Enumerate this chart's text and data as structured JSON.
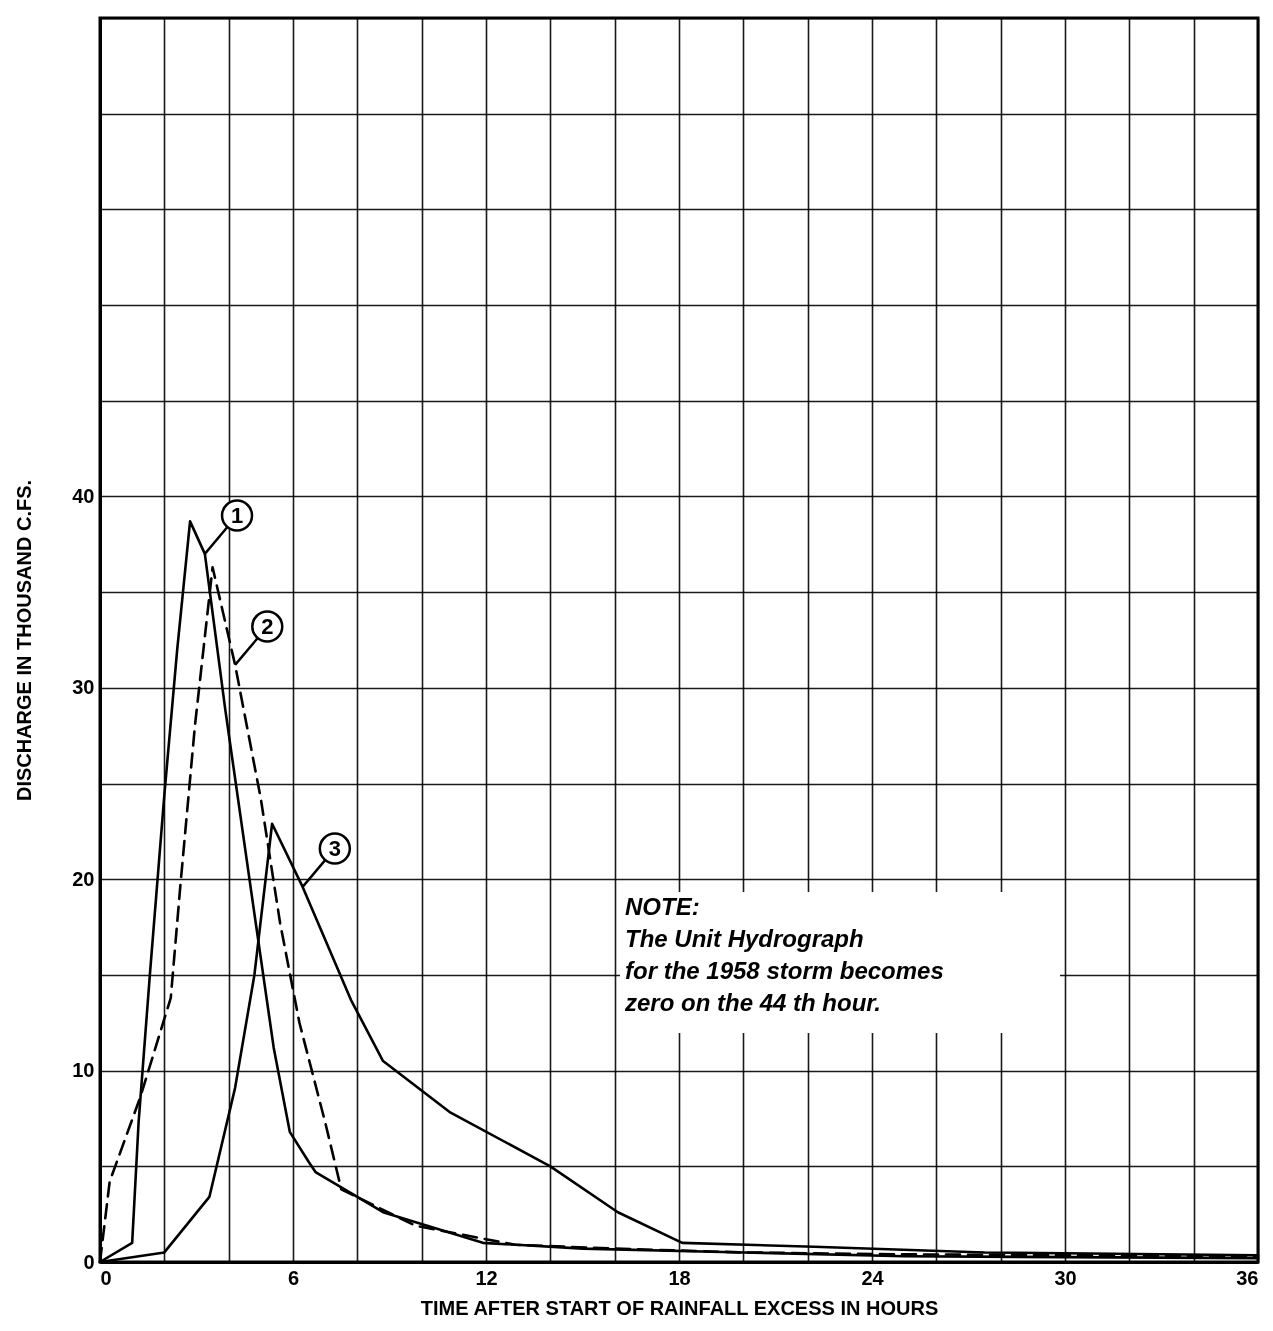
{
  "chart_data": {
    "type": "line",
    "xlabel": "TIME AFTER START OF RAINFALL EXCESS IN HOURS",
    "ylabel": "DISCHARGE IN THOUSAND C.FS.",
    "xlim": [
      0,
      36
    ],
    "ylim": [
      0,
      65
    ],
    "xticks": [
      0,
      {
        "value": 2,
        "label": null
      },
      {
        "value": 4,
        "label": null
      },
      6,
      {
        "value": 8,
        "label": null
      },
      {
        "value": 10,
        "label": null
      },
      12,
      {
        "value": 14,
        "label": null
      },
      {
        "value": 16,
        "label": null
      },
      18,
      {
        "value": 20,
        "label": null
      },
      {
        "value": 22,
        "label": null
      },
      24,
      {
        "value": 26,
        "label": null
      },
      {
        "value": 28,
        "label": null
      },
      30,
      {
        "value": 32,
        "label": null
      },
      {
        "value": 34,
        "label": null
      },
      36
    ],
    "yticks": [
      0,
      {
        "value": 5,
        "label": null
      },
      10,
      {
        "value": 15,
        "label": null
      },
      20,
      {
        "value": 25,
        "label": null
      },
      30,
      {
        "value": 35,
        "label": null
      },
      40,
      {
        "value": 45,
        "label": null
      },
      {
        "value": 50,
        "label": null
      },
      {
        "value": 55,
        "label": null
      },
      {
        "value": 60,
        "label": null
      },
      {
        "value": 65,
        "label": null
      }
    ],
    "grid": true,
    "marker": "none",
    "annotations": [
      "NOTE:\n    The Unit Hydrograph\nfor the 1958 storm becomes\nzero on the 44 th hour."
    ],
    "series": [
      {
        "name": "1",
        "color": "#000000",
        "line_style": "solid",
        "x": [
          0,
          1.0,
          1.2,
          1.55,
          2.0,
          2.4,
          2.8,
          3.26,
          3.9,
          4.8,
          5.4,
          5.9,
          6.5,
          6.7,
          8.8,
          11.9,
          15,
          20,
          25,
          36
        ],
        "values": [
          0,
          1.0,
          7.3,
          15,
          24.4,
          32,
          38.7,
          37,
          28.8,
          18.2,
          11.2,
          6.8,
          5.2,
          4.7,
          2.6,
          1.0,
          0.7,
          0.5,
          0.3,
          0.2
        ]
      },
      {
        "name": "2",
        "color": "#000000",
        "line_style": "dashed",
        "x": [
          0,
          0.3,
          1.25,
          2.2,
          2.5,
          2.95,
          3.5,
          4.2,
          5.0,
          5.6,
          6.2,
          7.0,
          7.5,
          9.8,
          12.9,
          16,
          20,
          25,
          36
        ],
        "values": [
          0,
          4.2,
          8.6,
          13.8,
          19.7,
          28,
          36.3,
          31.2,
          24.2,
          17.7,
          12.5,
          7.3,
          3.8,
          1.9,
          0.9,
          0.7,
          0.5,
          0.4,
          0.3
        ]
      },
      {
        "name": "3",
        "color": "#000000",
        "line_style": "solid",
        "x": [
          0,
          2.0,
          3.4,
          4.2,
          4.8,
          5.35,
          6.3,
          7.8,
          8.8,
          10.9,
          14.0,
          16.1,
          18.1,
          22.2,
          27.5,
          36
        ],
        "values": [
          0,
          0.5,
          3.4,
          9.1,
          15,
          22.9,
          19.6,
          13.7,
          10.5,
          7.8,
          5.0,
          2.6,
          1.0,
          0.8,
          0.5,
          0.35
        ]
      }
    ]
  }
}
